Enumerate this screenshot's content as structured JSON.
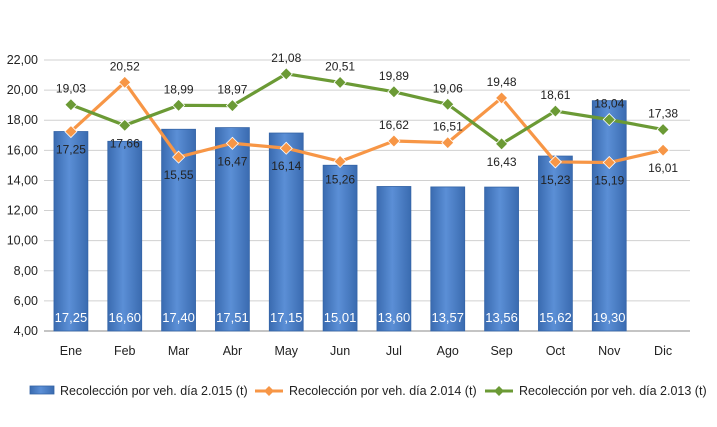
{
  "chart_data": {
    "type": "bar",
    "categories": [
      "Ene",
      "Feb",
      "Mar",
      "Abr",
      "May",
      "Jun",
      "Jul",
      "Ago",
      "Sep",
      "Oct",
      "Nov",
      "Dic"
    ],
    "ylim": [
      4,
      22
    ],
    "yticks": [
      "4,00",
      "6,00",
      "8,00",
      "10,00",
      "12,00",
      "14,00",
      "16,00",
      "18,00",
      "20,00",
      "22,00"
    ],
    "grid": true,
    "legend_position": "bottom",
    "series": [
      {
        "name": "Recolección por veh. día 2.015 (t)",
        "type": "bar",
        "color": "#4A7EC7",
        "values": [
          17.25,
          16.6,
          17.4,
          17.51,
          17.15,
          15.01,
          13.6,
          13.57,
          13.56,
          15.62,
          19.3,
          null
        ],
        "labels": [
          "17,25",
          "16,60",
          "17,40",
          "17,51",
          "17,15",
          "15,01",
          "13,60",
          "13,57",
          "13,56",
          "15,62",
          "19,30",
          ""
        ]
      },
      {
        "name": "Recolección por veh. día 2.014 (t)",
        "type": "line",
        "color": "#F79646",
        "values": [
          17.25,
          20.52,
          15.55,
          16.47,
          16.14,
          15.26,
          16.62,
          16.51,
          19.48,
          15.23,
          15.19,
          16.01
        ],
        "labels": [
          "17,25",
          "20,52",
          "15,55",
          "16,47",
          "16,14",
          "15,26",
          "16,62",
          "16,51",
          "19,48",
          "15,23",
          "15,19",
          "16,01"
        ]
      },
      {
        "name": "Recolección por veh. día 2.013 (t)",
        "type": "line",
        "color": "#6B9A35",
        "values": [
          19.03,
          17.66,
          18.99,
          18.97,
          21.08,
          20.51,
          19.89,
          19.06,
          16.43,
          18.61,
          18.04,
          17.38
        ],
        "labels": [
          "19,03",
          "17,66",
          "18,99",
          "18,97",
          "21,08",
          "20,51",
          "19,89",
          "19,06",
          "16,43",
          "18,61",
          "18,04",
          "17,38"
        ]
      }
    ]
  }
}
